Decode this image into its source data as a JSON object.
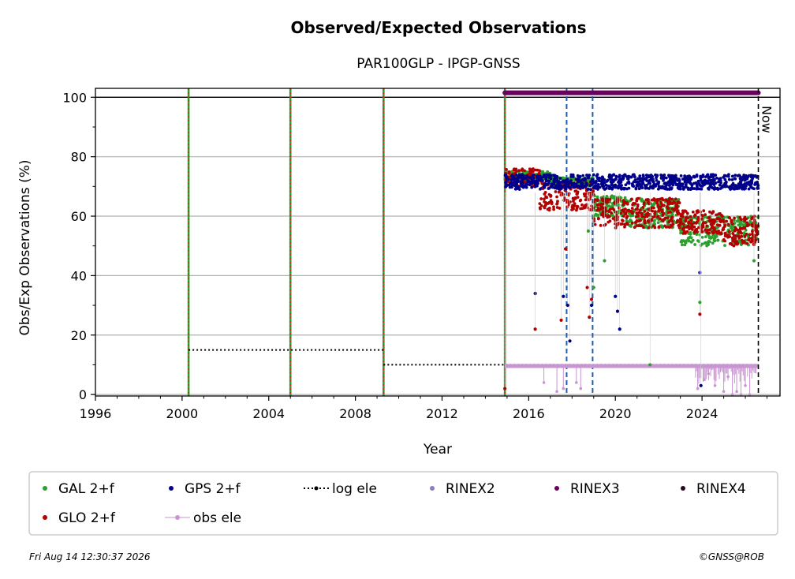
{
  "chart_data": {
    "type": "scatter",
    "title": "Observed/Expected Observations",
    "subtitle": "PAR100GLP - IPGP-GNSS",
    "xlabel": "Year",
    "ylabel": "Obs/Exp Observations (%)",
    "xlim": [
      1996,
      2027.6
    ],
    "ylim": [
      -0.5,
      103
    ],
    "x_ticks": [
      "1996",
      "2000",
      "2004",
      "2008",
      "2012",
      "2016",
      "2020",
      "2024"
    ],
    "y_ticks": [
      "0",
      "20",
      "40",
      "60",
      "80",
      "100"
    ],
    "grid": "y",
    "now_label": "Now",
    "now_year": 2026.6,
    "event_lines": [
      {
        "year": 2000.3,
        "style": "green-red-dotted"
      },
      {
        "year": 2005.0,
        "style": "green-red-dotted"
      },
      {
        "year": 2009.3,
        "style": "green-red-dotted"
      },
      {
        "year": 2014.9,
        "style": "green-red-dotted"
      },
      {
        "year": 2017.75,
        "style": "blue-dashed"
      },
      {
        "year": 2018.95,
        "style": "blue-dashed"
      }
    ],
    "log_ele": [
      {
        "x": [
          2000.3,
          2009.3
        ],
        "y": 15
      },
      {
        "x": [
          2009.3,
          2026.6
        ],
        "y": 10
      }
    ],
    "rinex3_bar": {
      "x": [
        2014.9,
        2026.6
      ],
      "y": 101.5
    },
    "obs_ele_level": 9.6,
    "series": [
      {
        "name": "GAL 2+f",
        "color": "#2ca02c",
        "segments": [
          [
            2014.9,
            2017.0,
            72,
            75
          ],
          [
            2017.0,
            2019.0,
            70,
            73
          ],
          [
            2019.0,
            2020.5,
            60,
            67
          ],
          [
            2020.5,
            2023.0,
            56,
            66
          ],
          [
            2023.0,
            2026.6,
            50,
            60
          ]
        ]
      },
      {
        "name": "GPS 2+f",
        "color": "#00008b",
        "segments": [
          [
            2014.9,
            2026.6,
            69,
            74
          ]
        ]
      },
      {
        "name": "GLO 2+f",
        "color": "#b30000",
        "segments": [
          [
            2014.9,
            2016.5,
            70,
            76
          ],
          [
            2016.5,
            2019.0,
            62,
            72
          ],
          [
            2019.0,
            2023.0,
            56,
            66
          ],
          [
            2023.0,
            2025.0,
            54,
            62
          ],
          [
            2025.0,
            2026.6,
            50,
            60
          ]
        ]
      }
    ],
    "outliers": [
      {
        "series": "GPS 2+f",
        "x": 2016.3,
        "y": 34
      },
      {
        "series": "GPS 2+f",
        "x": 2017.6,
        "y": 33
      },
      {
        "series": "GPS 2+f",
        "x": 2017.8,
        "y": 30
      },
      {
        "series": "GPS 2+f",
        "x": 2017.9,
        "y": 18
      },
      {
        "series": "GPS 2+f",
        "x": 2018.9,
        "y": 30
      },
      {
        "series": "GPS 2+f",
        "x": 2020.0,
        "y": 33
      },
      {
        "series": "GPS 2+f",
        "x": 2020.1,
        "y": 28
      },
      {
        "series": "GPS 2+f",
        "x": 2020.2,
        "y": 22
      },
      {
        "series": "GPS 2+f",
        "x": 2023.9,
        "y": 41
      },
      {
        "series": "GPS 2+f",
        "x": 2023.95,
        "y": 3
      },
      {
        "series": "GLO 2+f",
        "x": 2014.9,
        "y": 2
      },
      {
        "series": "GLO 2+f",
        "x": 2016.3,
        "y": 22
      },
      {
        "series": "GLO 2+f",
        "x": 2017.5,
        "y": 25
      },
      {
        "series": "GLO 2+f",
        "x": 2017.7,
        "y": 49
      },
      {
        "series": "GLO 2+f",
        "x": 2018.7,
        "y": 36
      },
      {
        "series": "GLO 2+f",
        "x": 2018.8,
        "y": 26
      },
      {
        "series": "GLO 2+f",
        "x": 2018.9,
        "y": 32
      },
      {
        "series": "GLO 2+f",
        "x": 2023.9,
        "y": 27
      },
      {
        "series": "GAL 2+f",
        "x": 2018.75,
        "y": 55
      },
      {
        "series": "GAL 2+f",
        "x": 2019.0,
        "y": 36
      },
      {
        "series": "GAL 2+f",
        "x": 2019.5,
        "y": 45
      },
      {
        "series": "GAL 2+f",
        "x": 2021.6,
        "y": 10
      },
      {
        "series": "GAL 2+f",
        "x": 2023.9,
        "y": 31
      },
      {
        "series": "GAL 2+f",
        "x": 2026.4,
        "y": 45
      }
    ],
    "legend": {
      "placement": "bottom",
      "entries": [
        {
          "label": "GAL 2+f",
          "marker": "dot",
          "color": "#2ca02c"
        },
        {
          "label": "GPS 2+f",
          "marker": "dot",
          "color": "#00008b"
        },
        {
          "label": "log ele",
          "marker": "dotted-line",
          "color": "#000000"
        },
        {
          "label": "RINEX2",
          "marker": "dot",
          "color": "#8c7fc0"
        },
        {
          "label": "RINEX3",
          "marker": "dot",
          "color": "#6a0060"
        },
        {
          "label": "RINEX4",
          "marker": "dot",
          "color": "#2a0a20"
        },
        {
          "label": "GLO 2+f",
          "marker": "dot",
          "color": "#b30000"
        },
        {
          "label": "obs ele",
          "marker": "line-dot",
          "color": "#c994d2"
        }
      ]
    }
  },
  "footer": {
    "timestamp": "Fri Aug 14 12:30:37 2026",
    "credit": "©GNSS@ROB"
  }
}
